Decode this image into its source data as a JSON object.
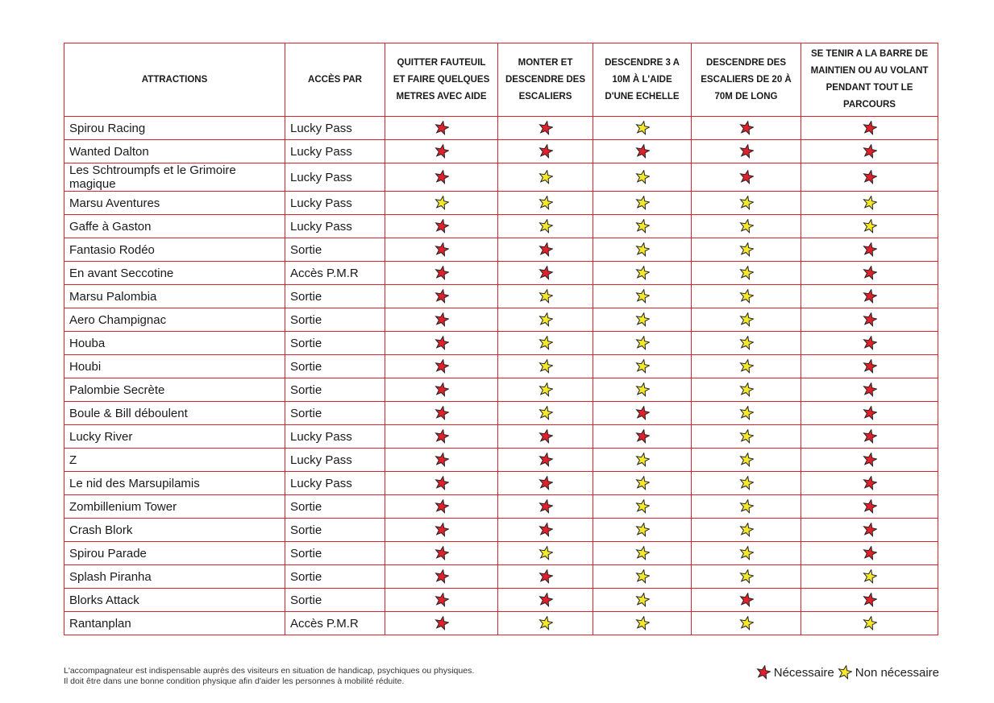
{
  "table": {
    "header": [
      "ATTRACTIONS",
      "ACCÈS PAR",
      "QUITTER FAUTEUIL ET FAIRE QUELQUES METRES AVEC AIDE",
      "MONTER ET DESCENDRE DES ESCALIERS",
      "DESCENDRE 3 A 10M À L'AIDE D'UNE ECHELLE",
      "DESCENDRE DES ESCALIERS DE 20 À 70M DE LONG",
      "SE TENIR A LA BARRE DE MAINTIEN OU AU VOLANT PENDANT TOUT LE PARCOURS"
    ],
    "rows": [
      [
        "Spirou Racing",
        "Lucky Pass",
        [
          0,
          0,
          1,
          0,
          0
        ]
      ],
      [
        "Wanted Dalton",
        "Lucky Pass",
        [
          0,
          0,
          0,
          0,
          0
        ]
      ],
      [
        "Les Schtroumpfs et le Grimoire magique",
        "Lucky Pass",
        [
          0,
          1,
          1,
          0,
          0
        ]
      ],
      [
        "Marsu Aventures",
        "Lucky Pass",
        [
          1,
          1,
          1,
          1,
          1
        ]
      ],
      [
        "Gaffe à Gaston",
        "Lucky Pass",
        [
          0,
          1,
          1,
          1,
          1
        ]
      ],
      [
        "Fantasio Rodéo",
        "Sortie",
        [
          0,
          0,
          1,
          1,
          0
        ]
      ],
      [
        "En avant Seccotine",
        "Accès P.M.R",
        [
          0,
          0,
          1,
          1,
          0
        ]
      ],
      [
        "Marsu Palombia",
        "Sortie",
        [
          0,
          1,
          1,
          1,
          0
        ]
      ],
      [
        "Aero Champignac",
        "Sortie",
        [
          0,
          1,
          1,
          1,
          0
        ]
      ],
      [
        "Houba",
        "Sortie",
        [
          0,
          1,
          1,
          1,
          0
        ]
      ],
      [
        "Houbi",
        "Sortie",
        [
          0,
          1,
          1,
          1,
          0
        ]
      ],
      [
        "Palombie Secrète",
        "Sortie",
        [
          0,
          1,
          1,
          1,
          0
        ]
      ],
      [
        "Boule & Bill déboulent",
        "Sortie",
        [
          0,
          1,
          0,
          1,
          0
        ]
      ],
      [
        "Lucky River",
        "Lucky Pass",
        [
          0,
          0,
          0,
          1,
          0
        ]
      ],
      [
        "Z",
        "Lucky Pass",
        [
          0,
          0,
          1,
          1,
          0
        ]
      ],
      [
        "Le nid des Marsupilamis",
        "Lucky Pass",
        [
          0,
          0,
          1,
          1,
          0
        ]
      ],
      [
        "Zombillenium Tower",
        "Sortie",
        [
          0,
          0,
          1,
          1,
          0
        ]
      ],
      [
        "Crash Blork",
        "Sortie",
        [
          0,
          0,
          1,
          1,
          0
        ]
      ],
      [
        "Spirou Parade",
        "Sortie",
        [
          0,
          1,
          1,
          1,
          0
        ]
      ],
      [
        "Splash Piranha",
        "Sortie",
        [
          0,
          0,
          1,
          1,
          1
        ]
      ],
      [
        "Blorks Attack",
        "Sortie",
        [
          0,
          0,
          1,
          0,
          0
        ]
      ],
      [
        "Rantanplan",
        "Accès P.M.R",
        [
          0,
          1,
          1,
          1,
          1
        ]
      ]
    ]
  },
  "legend": [
    {
      "label": "Nécessaire",
      "color": "#e0202a"
    },
    {
      "label": "Non nécessaire",
      "color": "#f5e829"
    }
  ],
  "footer": [
    "L'accompagnateur est indispensable auprès des visiteurs en situation de handicap, psychiques ou physiques.",
    "Il doit être dans une bonne condition physique afin d'aider les personnes à mobilité réduite."
  ]
}
